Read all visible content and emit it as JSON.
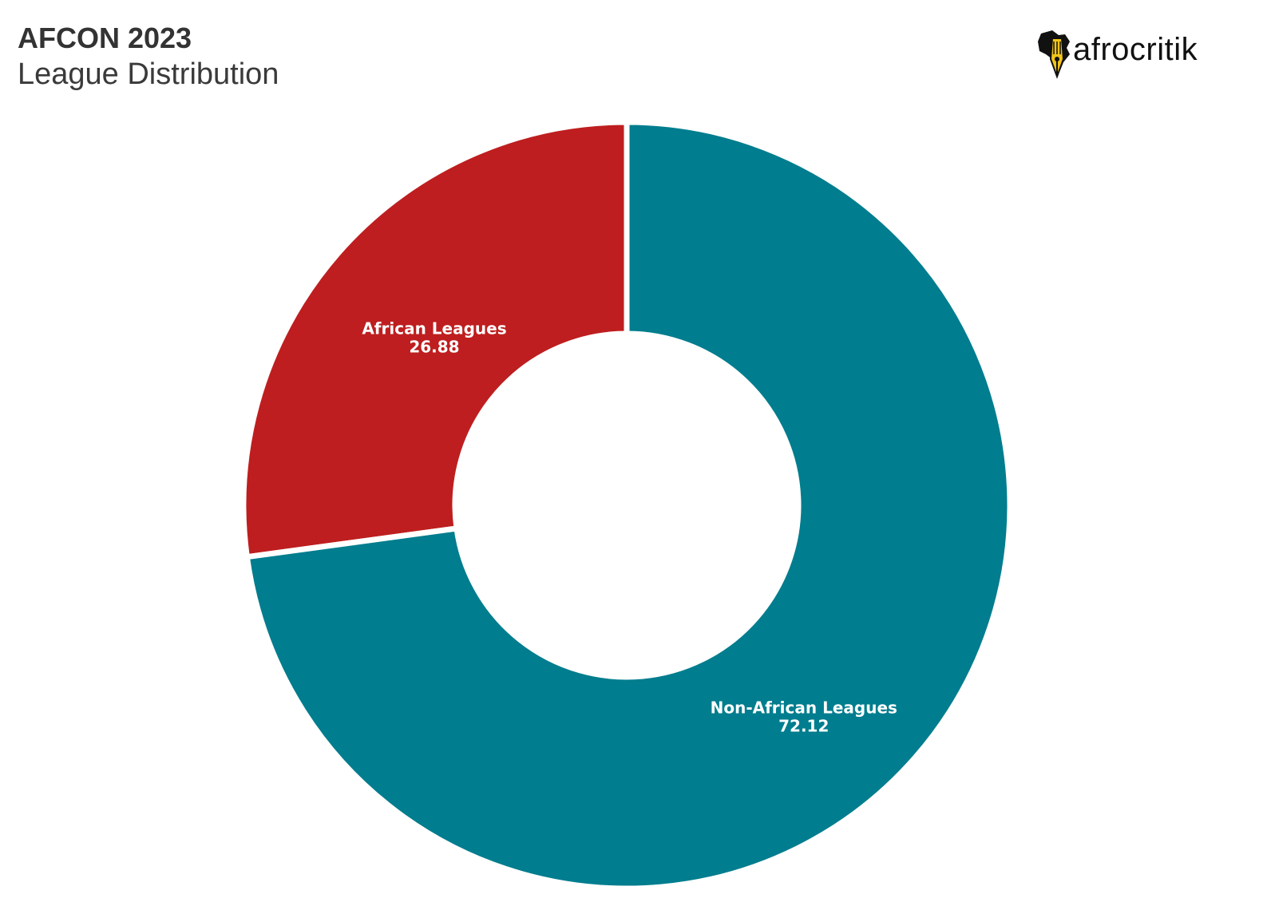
{
  "header": {
    "title": "AFCON 2023",
    "subtitle": "League Distribution"
  },
  "logo": {
    "text": "afrocritik",
    "icon": "africa-pen-icon"
  },
  "chart_data": {
    "type": "pie",
    "title": "AFCON 2023",
    "subtitle": "League Distribution",
    "donut": true,
    "slices": [
      {
        "label": "African Leagues",
        "value": 26.88,
        "color": "#BE1E1F"
      },
      {
        "label": "Non-African Leagues",
        "value": 72.12,
        "color": "#007D8E"
      }
    ]
  }
}
